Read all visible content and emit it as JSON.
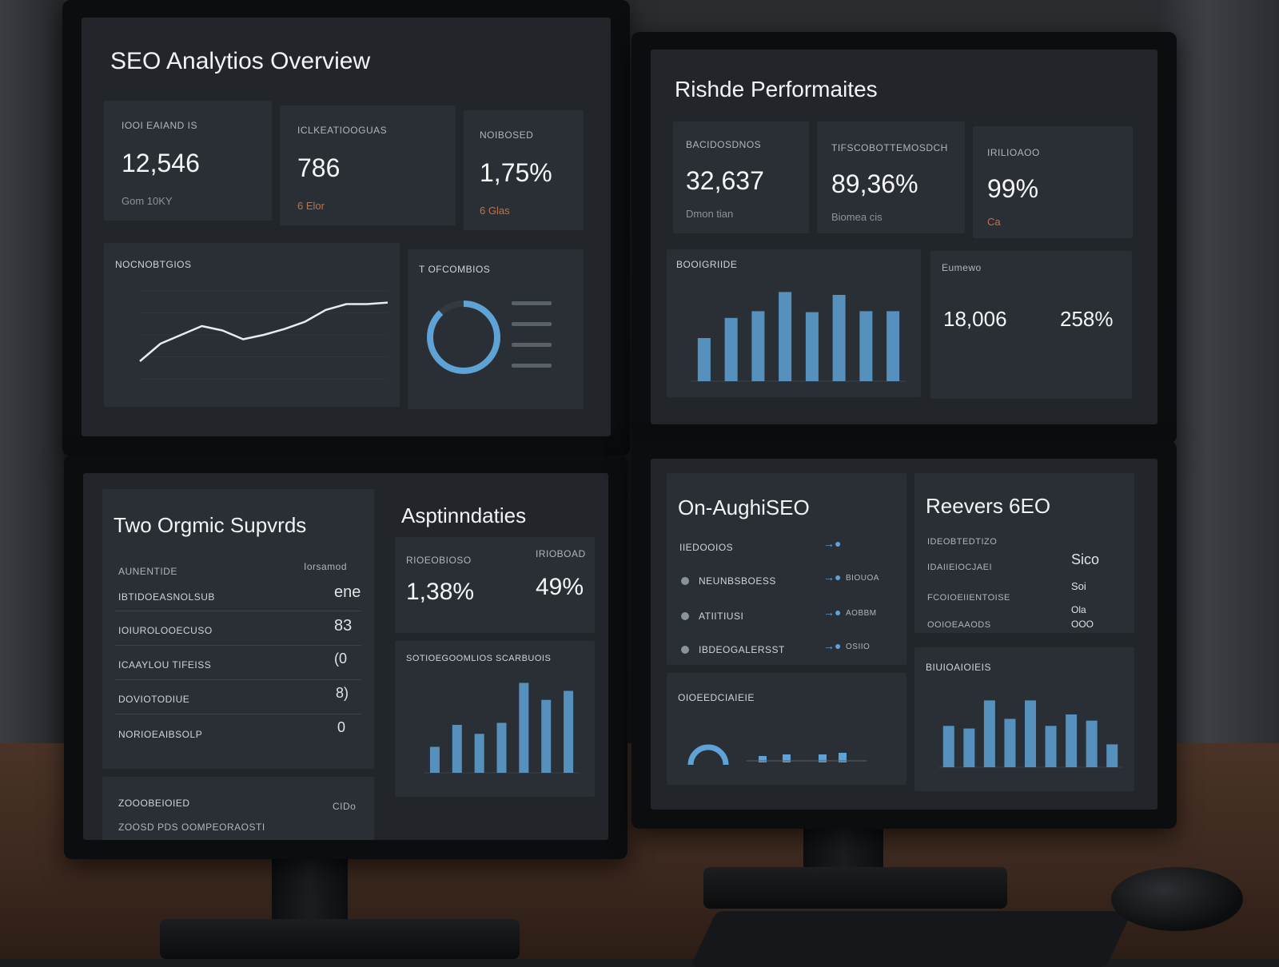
{
  "colors": {
    "accent_blue": "#5ea2d6",
    "accent_orange": "#c5704a",
    "screen_bg": "#22262b",
    "card_bg": "#2a2f35"
  },
  "tl": {
    "title": "SEO Analytios Overview",
    "kpis": [
      {
        "label": "IOOI EAIAND IS",
        "value": "12,546",
        "note": "Gom 10KY"
      },
      {
        "label": "ICLKEATIOOGUAS",
        "value": "786",
        "note": "6 Elor"
      },
      {
        "label": "NOIBOSED",
        "value": "1,75%",
        "note": "6 Glas"
      }
    ],
    "line_panel_label": "NOCNOBTGIOS",
    "donut_panel_label": "T OFCOMBIOS",
    "donut_fraction": 0.88,
    "line_values": [
      12,
      24,
      30,
      36,
      33,
      27,
      30,
      34,
      39,
      47,
      51,
      51,
      52
    ]
  },
  "tr": {
    "title": "Rishde Performaites",
    "kpis": [
      {
        "label": "BACIDOSDNOS",
        "value": "32,637",
        "note": "Dmon tian"
      },
      {
        "label": "TIFSCOBOTTEMOSDCH",
        "value": "89,36%",
        "note": "Biomea cis"
      },
      {
        "label": "IRILIOAOO",
        "value": "99%",
        "note": "Ca"
      }
    ],
    "bar_panel_label": "BOOIGRIIDE",
    "bar_values": [
      45,
      66,
      73,
      93,
      72,
      90,
      73,
      73
    ],
    "stats_panel_label": "Eumewo",
    "stats": [
      {
        "value": "18,006"
      },
      {
        "value": "258%"
      }
    ]
  },
  "bl": {
    "title": "Two Orgmic Supvrds",
    "list_header": "AUNENTIDE",
    "list_header_right": "Iorsamod",
    "rows": [
      {
        "label": "IBTIDOEASNOLSUB",
        "value": "ene"
      },
      {
        "label": "IOIUROLOOECUSO",
        "value": "83"
      },
      {
        "label": "ICAAYLOU TIFEISS",
        "value": "(0"
      },
      {
        "label": "DOVIOTODIUE",
        "value": "8)"
      },
      {
        "label": "NORIOEAIBSOLP",
        "value": "0"
      }
    ],
    "footer_label": "ZOOOBEIOIED",
    "footer_value": "CIDo",
    "footer_sub": "ZOOSD PDS OOMPEORAOSTI",
    "panel_title": "Asptinndaties",
    "kpis": [
      {
        "label": "RIOEOBIOSO",
        "value": "1,38%"
      },
      {
        "label": "IRIOBOAD",
        "value": "49%"
      }
    ],
    "bar_panel_label": "SOTIOEGOOMLIOS SCARBUOIS",
    "bar_values": [
      26,
      48,
      39,
      50,
      90,
      73,
      82
    ]
  },
  "br": {
    "title": "On-AughiSEO",
    "list_header": "IIEDOOIOS",
    "rows": [
      {
        "label": "NEUNBSBOESS",
        "meta": "BIOUOA"
      },
      {
        "label": "ATIITIUSI",
        "meta": "AOBBM"
      },
      {
        "label": "IBDEOGALERSST",
        "meta": "OSIIO"
      }
    ],
    "reviews_title": "Reevers 6EO",
    "reviews": [
      {
        "label": "IDEOBTEDTIZO",
        "value": "Sico"
      },
      {
        "label": "IDAIIEIOCJAEI",
        "value": "Soi"
      },
      {
        "label": "FCOIOEIIENTOISE",
        "value": "Ola"
      },
      {
        "label": "OOIOEAAODS",
        "value": "OOO"
      }
    ],
    "gauge_panel_label": "OIOEEDCIAIEIE",
    "bar_panel_label": "BIUIOAIOIEIS",
    "bar_values": [
      47,
      44,
      76,
      55,
      76,
      47,
      60,
      53,
      26
    ]
  }
}
